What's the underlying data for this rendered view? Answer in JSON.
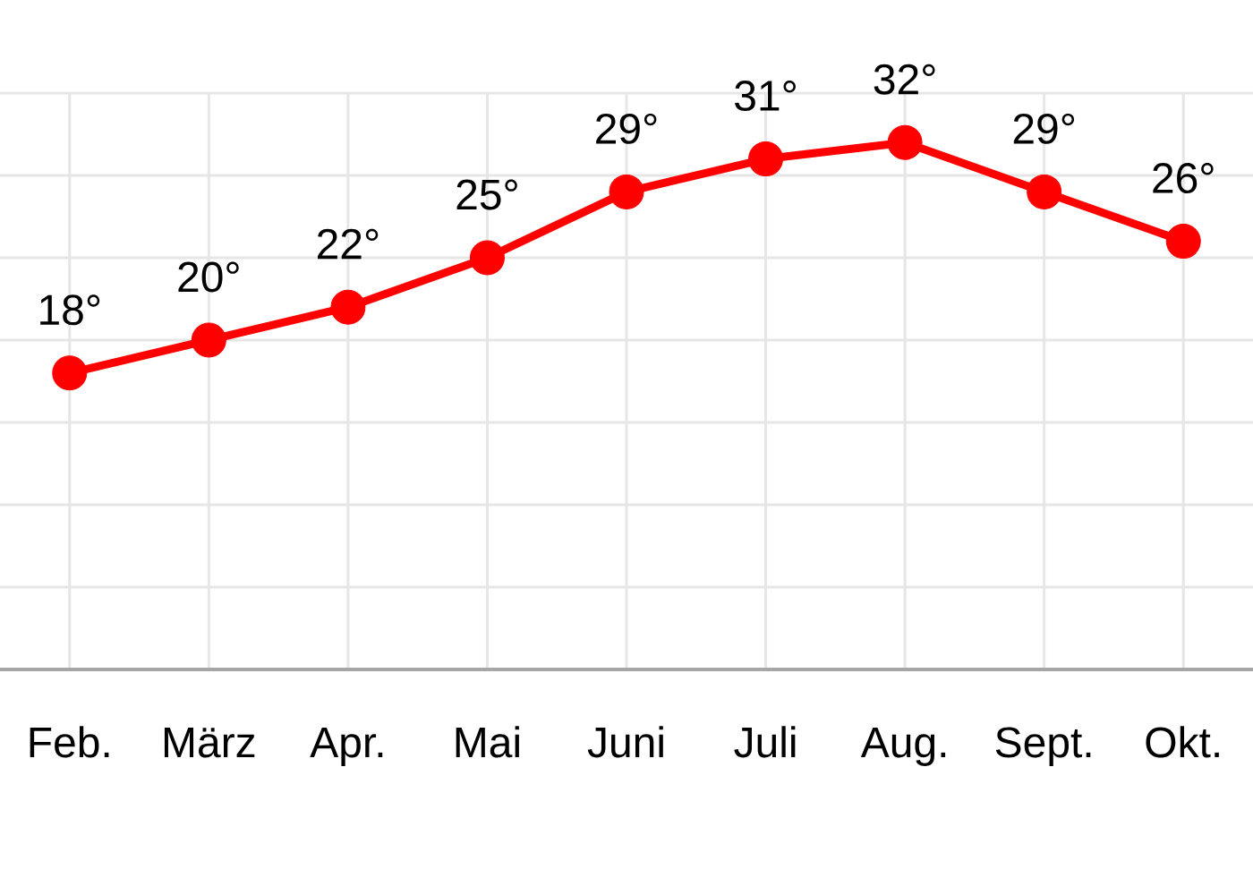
{
  "chart_data": {
    "type": "line",
    "categories": [
      "Feb.",
      "März",
      "Apr.",
      "Mai",
      "Juni",
      "Juli",
      "Aug.",
      "Sept.",
      "Okt."
    ],
    "values": [
      18,
      20,
      22,
      25,
      29,
      31,
      32,
      29,
      26
    ],
    "value_labels": [
      "18°",
      "20°",
      "22°",
      "25°",
      "29°",
      "31°",
      "32°",
      "29°",
      "26°"
    ],
    "color": "#ff0000",
    "ylim": [
      0,
      35
    ],
    "tick_labels": "x",
    "grid": true,
    "marker": "circle",
    "line_style": "solid"
  }
}
